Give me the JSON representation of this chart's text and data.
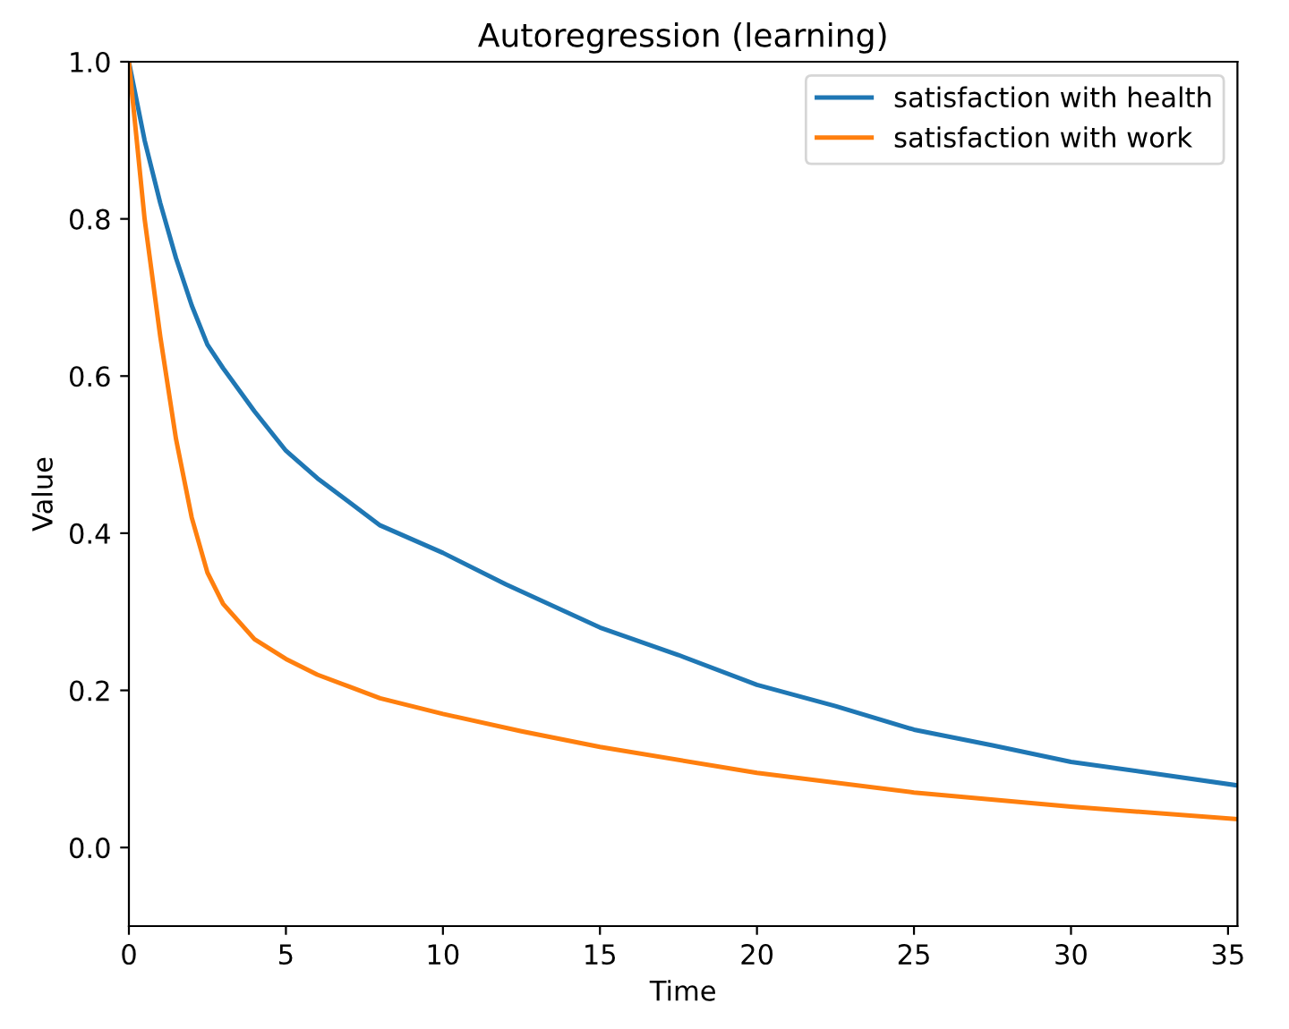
{
  "chart_data": {
    "type": "line",
    "title": "Autoregression (learning)",
    "xlabel": "Time",
    "ylabel": "Value",
    "xlim": [
      0,
      35.3
    ],
    "ylim": [
      -0.1,
      1.0
    ],
    "xticks": [
      0,
      5,
      10,
      15,
      20,
      25,
      30,
      35
    ],
    "yticks": [
      {
        "value": 0,
        "label": "0.0"
      },
      0.2,
      0.4,
      0.6,
      0.8,
      {
        "value": 1,
        "label": "1.0"
      }
    ],
    "grid": false,
    "legend": "top right",
    "series": [
      {
        "name": "satisfaction with health",
        "color": "#1f77b4",
        "x": [
          0,
          0.5,
          1,
          1.5,
          2,
          2.5,
          3,
          4,
          5,
          6,
          7,
          8,
          10,
          12,
          15,
          17.5,
          20,
          22.5,
          25,
          27.5,
          30,
          32.5,
          35.3
        ],
        "values": [
          1.0,
          0.9,
          0.82,
          0.75,
          0.69,
          0.64,
          0.61,
          0.555,
          0.505,
          0.47,
          0.44,
          0.41,
          0.375,
          0.335,
          0.28,
          0.245,
          0.207,
          0.18,
          0.15,
          0.13,
          0.109,
          0.095,
          0.079
        ]
      },
      {
        "name": "satisfaction with work",
        "color": "#ff7f0e",
        "x": [
          0,
          0.5,
          1,
          1.5,
          2,
          2.5,
          3,
          4,
          5,
          6,
          7,
          8,
          10,
          12.5,
          15,
          20,
          25,
          30,
          35.3
        ],
        "values": [
          1.0,
          0.8,
          0.65,
          0.52,
          0.42,
          0.35,
          0.31,
          0.265,
          0.24,
          0.22,
          0.205,
          0.19,
          0.17,
          0.148,
          0.128,
          0.095,
          0.07,
          0.052,
          0.036
        ]
      }
    ]
  }
}
